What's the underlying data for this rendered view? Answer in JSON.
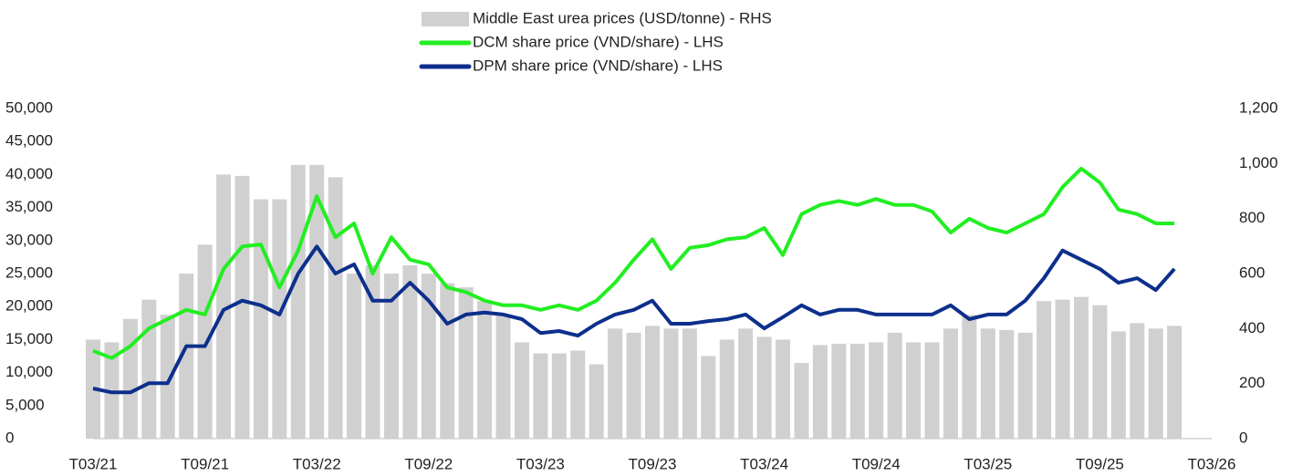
{
  "chart_data": {
    "type": "bar-line",
    "x": [
      "2021-03",
      "2021-04",
      "2021-05",
      "2021-06",
      "2021-07",
      "2021-08",
      "2021-09",
      "2021-10",
      "2021-11",
      "2021-12",
      "2022-01",
      "2022-02",
      "2022-03",
      "2022-04",
      "2022-05",
      "2022-06",
      "2022-07",
      "2022-08",
      "2022-09",
      "2022-10",
      "2022-11",
      "2022-12",
      "2023-01",
      "2023-02",
      "2023-03",
      "2023-04",
      "2023-05",
      "2023-06",
      "2023-07",
      "2023-08",
      "2023-09",
      "2023-10",
      "2023-11",
      "2023-12",
      "2024-01",
      "2024-02",
      "2024-03",
      "2024-04",
      "2024-05",
      "2024-06",
      "2024-07",
      "2024-08",
      "2024-09",
      "2024-10",
      "2024-11",
      "2024-12",
      "2025-01",
      "2025-02",
      "2025-03",
      "2025-04",
      "2025-05",
      "2025-06",
      "2025-07",
      "2025-08",
      "2025-09",
      "2025-10",
      "2025-11",
      "2025-12",
      "2026-01"
    ],
    "series": [
      {
        "name": "Middle East urea prices (USD/tonne) - RHS",
        "type": "bar",
        "axis": "y2",
        "color": "#d0d0d0",
        "values": [
          360,
          350,
          435,
          505,
          450,
          600,
          705,
          960,
          955,
          870,
          870,
          995,
          995,
          950,
          600,
          630,
          600,
          630,
          600,
          565,
          550,
          500,
          450,
          350,
          310,
          310,
          320,
          270,
          400,
          385,
          410,
          400,
          400,
          300,
          360,
          400,
          370,
          360,
          275,
          340,
          345,
          345,
          350,
          385,
          350,
          350,
          400,
          450,
          400,
          395,
          385,
          500,
          505,
          515,
          485,
          390,
          420,
          400,
          410
        ]
      },
      {
        "name": "DCM share price (VND/share) - LHS",
        "type": "line",
        "color": "#22ee22",
        "values": [
          13300,
          12200,
          14000,
          16700,
          18100,
          19500,
          18800,
          25700,
          29100,
          29400,
          22900,
          28500,
          36700,
          30500,
          32600,
          25000,
          30500,
          27100,
          26400,
          22900,
          22200,
          20900,
          20200,
          20200,
          19500,
          20200,
          19500,
          20900,
          23600,
          27100,
          30200,
          25700,
          28900,
          29300,
          30200,
          30500,
          31900,
          27800,
          34000,
          35400,
          36000,
          35400,
          36300,
          35400,
          35400,
          34400,
          31200,
          33300,
          31900,
          31200,
          32600,
          34000,
          38100,
          40900,
          38800,
          34700,
          34000,
          32600,
          32600
        ]
      },
      {
        "name": "DPM share price (VND/share) - LHS",
        "type": "line",
        "color": "#0d2f8c",
        "values": [
          7600,
          7000,
          7000,
          8400,
          8400,
          14000,
          14000,
          19500,
          20900,
          20200,
          18800,
          25000,
          29100,
          25000,
          26400,
          20900,
          20900,
          23600,
          20900,
          17400,
          18800,
          19100,
          18800,
          18100,
          16000,
          16300,
          15600,
          17400,
          18800,
          19500,
          20900,
          17400,
          17400,
          17800,
          18100,
          18800,
          16700,
          18400,
          20200,
          18800,
          19500,
          19500,
          18800,
          18800,
          18800,
          18800,
          20200,
          18100,
          18800,
          18800,
          20900,
          24300,
          28500,
          27100,
          25700,
          23600,
          24300,
          22500,
          25700
        ]
      }
    ],
    "xlim": [
      "2021-03",
      "2026-03"
    ],
    "xticks": [
      {
        "value": "2021-03",
        "label": "T03/21"
      },
      {
        "value": "2021-09",
        "label": "T09/21"
      },
      {
        "value": "2022-03",
        "label": "T03/22"
      },
      {
        "value": "2022-09",
        "label": "T09/22"
      },
      {
        "value": "2023-03",
        "label": "T03/23"
      },
      {
        "value": "2023-09",
        "label": "T09/23"
      },
      {
        "value": "2024-03",
        "label": "T03/24"
      },
      {
        "value": "2024-09",
        "label": "T09/24"
      },
      {
        "value": "2025-03",
        "label": "T03/25"
      },
      {
        "value": "2025-09",
        "label": "T09/25"
      },
      {
        "value": "2026-03",
        "label": "T03/26"
      }
    ],
    "ylim": [
      0,
      50000
    ],
    "yticks": [
      0,
      {
        "value": 5000,
        "label": "5,000"
      },
      {
        "value": 10000,
        "label": "10,000"
      },
      {
        "value": 15000,
        "label": "15,000"
      },
      {
        "value": 20000,
        "label": "20,000"
      },
      {
        "value": 25000,
        "label": "25,000"
      },
      {
        "value": 30000,
        "label": "30,000"
      },
      {
        "value": 35000,
        "label": "35,000"
      },
      {
        "value": 40000,
        "label": "40,000"
      },
      {
        "value": 45000,
        "label": "45,000"
      },
      {
        "value": 50000,
        "label": "50,000"
      }
    ],
    "y2lim": [
      0,
      1200
    ],
    "y2ticks": [
      0,
      200,
      400,
      600,
      800,
      {
        "value": 1000,
        "label": "1,000"
      },
      {
        "value": 1200,
        "label": "1,200"
      }
    ],
    "legend": "top"
  }
}
